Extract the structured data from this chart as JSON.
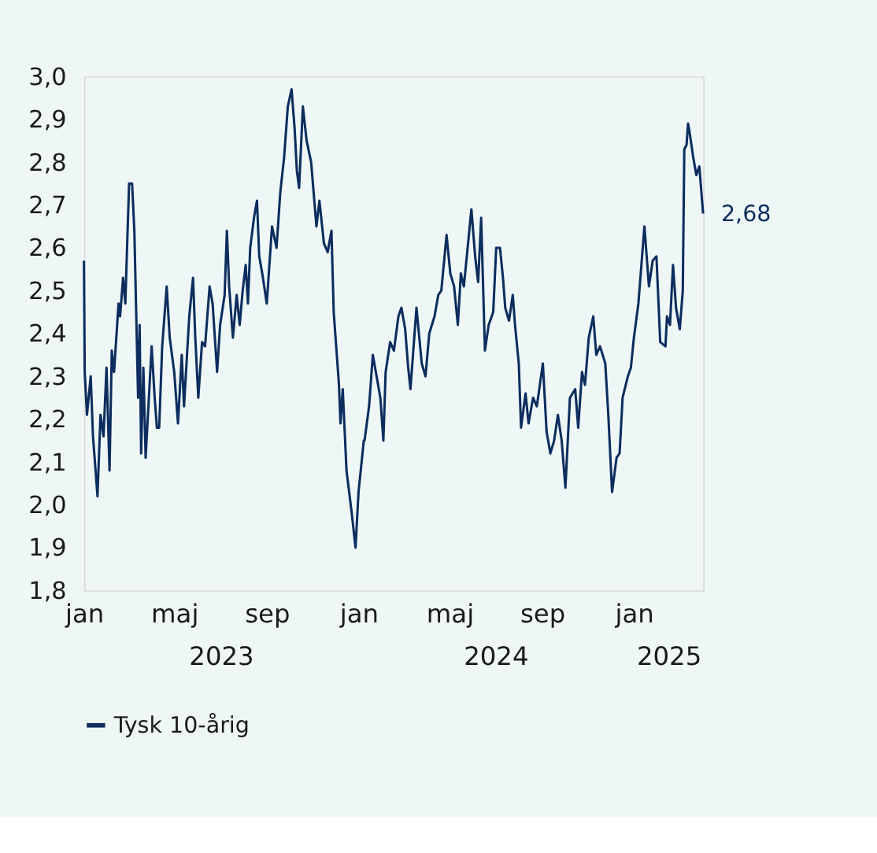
{
  "chart_data": {
    "type": "line",
    "x": [
      "2023-01-01",
      "2023-01-02",
      "2023-01-05",
      "2023-01-10",
      "2023-01-13",
      "2023-01-19",
      "2023-01-23",
      "2023-01-27",
      "2023-01-31",
      "2023-02-04",
      "2023-02-07",
      "2023-02-10",
      "2023-02-16",
      "2023-02-18",
      "2023-02-22",
      "2023-02-25",
      "2023-03-02",
      "2023-03-06",
      "2023-03-09",
      "2023-03-14",
      "2023-03-16",
      "2023-03-18",
      "2023-03-21",
      "2023-03-24",
      "2023-03-28",
      "2023-04-01",
      "2023-04-05",
      "2023-04-08",
      "2023-04-11",
      "2023-04-15",
      "2023-04-21",
      "2023-04-25",
      "2023-05-01",
      "2023-05-06",
      "2023-05-11",
      "2023-05-14",
      "2023-05-18",
      "2023-05-21",
      "2023-05-26",
      "2023-05-29",
      "2023-06-02",
      "2023-06-07",
      "2023-06-11",
      "2023-06-17",
      "2023-06-21",
      "2023-06-27",
      "2023-07-01",
      "2023-07-07",
      "2023-07-10",
      "2023-07-13",
      "2023-07-18",
      "2023-07-23",
      "2023-07-27",
      "2023-07-31",
      "2023-08-04",
      "2023-08-07",
      "2023-08-10",
      "2023-08-15",
      "2023-08-19",
      "2023-08-22",
      "2023-08-26",
      "2023-09-01",
      "2023-09-08",
      "2023-09-14",
      "2023-09-19",
      "2023-09-24",
      "2023-09-29",
      "2023-10-04",
      "2023-10-08",
      "2023-10-11",
      "2023-10-14",
      "2023-10-19",
      "2023-10-24",
      "2023-10-30",
      "2023-11-06",
      "2023-11-10",
      "2023-11-16",
      "2023-11-21",
      "2023-11-26",
      "2023-11-29",
      "2023-12-06",
      "2023-12-08",
      "2023-12-11",
      "2023-12-16",
      "2023-12-23",
      "2023-12-28",
      "2024-01-01",
      "2024-01-08",
      "2024-01-09",
      "2024-01-15",
      "2024-01-20",
      "2024-01-25",
      "2024-01-30",
      "2024-02-03",
      "2024-02-06",
      "2024-02-12",
      "2024-02-17",
      "2024-02-23",
      "2024-02-27",
      "2024-03-03",
      "2024-03-07",
      "2024-03-10",
      "2024-03-18",
      "2024-03-25",
      "2024-03-30",
      "2024-04-04",
      "2024-04-11",
      "2024-04-16",
      "2024-04-20",
      "2024-04-27",
      "2024-05-02",
      "2024-05-07",
      "2024-05-12",
      "2024-05-16",
      "2024-05-20",
      "2024-05-25",
      "2024-05-30",
      "2024-06-04",
      "2024-06-08",
      "2024-06-12",
      "2024-06-17",
      "2024-06-22",
      "2024-06-28",
      "2024-07-02",
      "2024-07-07",
      "2024-07-11",
      "2024-07-14",
      "2024-07-19",
      "2024-07-24",
      "2024-07-27",
      "2024-08-01",
      "2024-08-04",
      "2024-08-10",
      "2024-08-14",
      "2024-08-20",
      "2024-08-25",
      "2024-08-29",
      "2024-09-02",
      "2024-09-07",
      "2024-09-12",
      "2024-09-17",
      "2024-09-22",
      "2024-09-27",
      "2024-10-02",
      "2024-10-08",
      "2024-10-15",
      "2024-10-19",
      "2024-10-24",
      "2024-10-28",
      "2024-11-02",
      "2024-11-08",
      "2024-11-12",
      "2024-11-17",
      "2024-11-24",
      "2024-11-28",
      "2024-12-03",
      "2024-12-09",
      "2024-12-13",
      "2024-12-17",
      "2024-12-24",
      "2024-12-28",
      "2025-01-01",
      "2025-01-07",
      "2025-01-11",
      "2025-01-15",
      "2025-01-21",
      "2025-01-26",
      "2025-01-31",
      "2025-02-05",
      "2025-02-12",
      "2025-02-14",
      "2025-02-18",
      "2025-02-22",
      "2025-02-26",
      "2025-03-03",
      "2025-03-07",
      "2025-03-09",
      "2025-03-12",
      "2025-03-14",
      "2025-03-16",
      "2025-03-21",
      "2025-03-25",
      "2025-03-29",
      "2025-04-03"
    ],
    "series": [
      {
        "name": "Tysk 10-årig",
        "color": "#0d2d5e",
        "values": [
          2.57,
          2.31,
          2.21,
          2.3,
          2.16,
          2.02,
          2.21,
          2.16,
          2.32,
          2.08,
          2.36,
          2.31,
          2.47,
          2.44,
          2.53,
          2.47,
          2.75,
          2.75,
          2.64,
          2.25,
          2.42,
          2.12,
          2.32,
          2.11,
          2.24,
          2.37,
          2.25,
          2.18,
          2.18,
          2.37,
          2.51,
          2.39,
          2.31,
          2.19,
          2.35,
          2.23,
          2.35,
          2.44,
          2.53,
          2.39,
          2.25,
          2.38,
          2.37,
          2.51,
          2.47,
          2.31,
          2.42,
          2.49,
          2.64,
          2.51,
          2.39,
          2.49,
          2.42,
          2.5,
          2.56,
          2.47,
          2.6,
          2.67,
          2.71,
          2.58,
          2.54,
          2.47,
          2.65,
          2.6,
          2.73,
          2.81,
          2.93,
          2.97,
          2.88,
          2.78,
          2.74,
          2.93,
          2.85,
          2.8,
          2.65,
          2.71,
          2.61,
          2.59,
          2.64,
          2.45,
          2.28,
          2.19,
          2.27,
          2.08,
          1.98,
          1.9,
          2.03,
          2.15,
          2.15,
          2.23,
          2.35,
          2.3,
          2.25,
          2.15,
          2.31,
          2.38,
          2.36,
          2.44,
          2.46,
          2.41,
          2.32,
          2.27,
          2.46,
          2.33,
          2.3,
          2.4,
          2.44,
          2.49,
          2.5,
          2.63,
          2.54,
          2.51,
          2.42,
          2.54,
          2.51,
          2.6,
          2.69,
          2.58,
          2.52,
          2.67,
          2.36,
          2.42,
          2.45,
          2.6,
          2.6,
          2.53,
          2.46,
          2.43,
          2.49,
          2.42,
          2.33,
          2.18,
          2.26,
          2.19,
          2.25,
          2.23,
          2.28,
          2.33,
          2.17,
          2.12,
          2.15,
          2.21,
          2.15,
          2.04,
          2.25,
          2.27,
          2.18,
          2.31,
          2.28,
          2.39,
          2.44,
          2.35,
          2.37,
          2.33,
          2.21,
          2.03,
          2.11,
          2.12,
          2.25,
          2.3,
          2.32,
          2.39,
          2.47,
          2.56,
          2.65,
          2.51,
          2.57,
          2.58,
          2.38,
          2.37,
          2.44,
          2.42,
          2.56,
          2.46,
          2.41,
          2.5,
          2.83,
          2.84,
          2.89,
          2.87,
          2.81,
          2.77,
          2.79,
          2.68
        ]
      }
    ],
    "xlim": [
      "2023-01-01",
      "2025-04-03"
    ],
    "xticks": [
      {
        "value": "2023-01-01",
        "label": "jan"
      },
      {
        "value": "2023-05-01",
        "label": "maj"
      },
      {
        "value": "2023-09-01",
        "label": "sep"
      },
      {
        "value": "2024-01-01",
        "label": "jan"
      },
      {
        "value": "2024-05-01",
        "label": "maj"
      },
      {
        "value": "2024-09-01",
        "label": "sep"
      },
      {
        "value": "2025-01-01",
        "label": "jan"
      }
    ],
    "x2lim": [
      "2023-01-01",
      "2025-04-03"
    ],
    "x2ticks": [
      {
        "value": "2023-07-02",
        "label": "2023"
      },
      {
        "value": "2024-07-01",
        "label": "2024"
      },
      {
        "value": "2025-02-16",
        "label": "2025"
      }
    ],
    "ylim": [
      1.8,
      3.0
    ],
    "yticks": [
      {
        "value": 1.8,
        "label": "1,8"
      },
      {
        "value": 1.9,
        "label": "1,9"
      },
      {
        "value": 2.0,
        "label": "2,0"
      },
      {
        "value": 2.1,
        "label": "2,1"
      },
      {
        "value": 2.2,
        "label": "2,2"
      },
      {
        "value": 2.3,
        "label": "2,3"
      },
      {
        "value": 2.4,
        "label": "2,4"
      },
      {
        "value": 2.5,
        "label": "2,5"
      },
      {
        "value": 2.6,
        "label": "2,6"
      },
      {
        "value": 2.7,
        "label": "2,7"
      },
      {
        "value": 2.8,
        "label": "2,8"
      },
      {
        "value": 2.9,
        "label": "2,9"
      },
      {
        "value": 3.0,
        "label": "3,0"
      }
    ],
    "annotations": [
      {
        "text": "2,68",
        "x": "2025-04-03",
        "y": 2.68
      }
    ],
    "grid": false,
    "legend": "bottom left",
    "marker": "none",
    "line_style": "solid"
  }
}
